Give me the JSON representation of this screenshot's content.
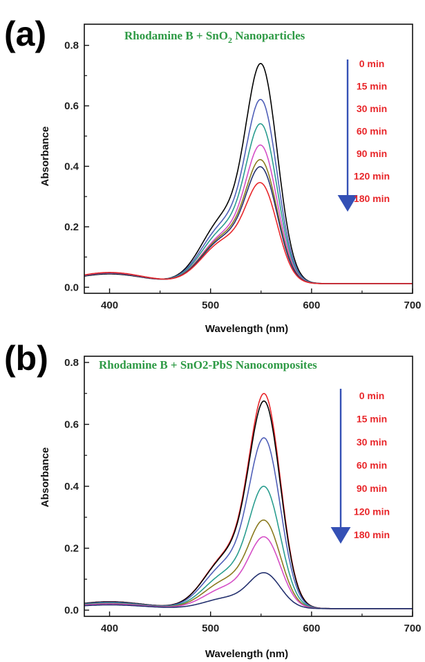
{
  "chart_data": [
    {
      "type": "line",
      "panel_label": "(a)",
      "title_main": "Rhodamine B + SnO",
      "title_sub": "2",
      "title_rest": " Nanoparticles",
      "xlabel": "Wavelength (nm)",
      "ylabel": "Absorbance",
      "xlim": [
        375,
        700
      ],
      "ylim": [
        -0.02,
        0.87
      ],
      "xticks": [
        400,
        500,
        600,
        700
      ],
      "yticks": [
        0.0,
        0.2,
        0.4,
        0.6,
        0.8
      ],
      "ytick_labels": [
        "0.0",
        "0.2",
        "0.4",
        "0.6",
        "0.8"
      ],
      "legend_placement": "top-right",
      "legend_arrow": true,
      "series": [
        {
          "name": "0 min",
          "color": "#000000",
          "peak": 0.785,
          "shoulder": 0.38,
          "base": 0.012,
          "bump": 0.032
        },
        {
          "name": "15 min",
          "color": "#4f5fb8",
          "peak": 0.66,
          "shoulder": 0.34,
          "base": 0.012,
          "bump": 0.034
        },
        {
          "name": "30 min",
          "color": "#2a9d8f",
          "peak": 0.575,
          "shoulder": 0.31,
          "base": 0.012,
          "bump": 0.035
        },
        {
          "name": "60 min",
          "color": "#d54ec6",
          "peak": 0.5,
          "shoulder": 0.28,
          "base": 0.012,
          "bump": 0.035
        },
        {
          "name": "90 min",
          "color": "#8a7a1e",
          "peak": 0.45,
          "shoulder": 0.27,
          "base": 0.012,
          "bump": 0.036
        },
        {
          "name": "120 min",
          "color": "#23306e",
          "peak": 0.425,
          "shoulder": 0.26,
          "base": 0.012,
          "bump": 0.036
        },
        {
          "name": "180 min",
          "color": "#e8262a",
          "peak": 0.37,
          "shoulder": 0.245,
          "base": 0.012,
          "bump": 0.037
        }
      ]
    },
    {
      "type": "line",
      "panel_label": "(b)",
      "title_main": "Rhodamine B + SnO",
      "title_sub": "2",
      "title_rest": "-PbS Nanocomposites",
      "xlabel": "Wavelength (nm)",
      "ylabel": "Absorbance",
      "xlim": [
        375,
        700
      ],
      "ylim": [
        -0.02,
        0.82
      ],
      "xticks": [
        400,
        500,
        600,
        700
      ],
      "yticks": [
        0.0,
        0.2,
        0.4,
        0.6,
        0.8
      ],
      "ytick_labels": [
        "0.0",
        "0.2",
        "0.4",
        "0.6",
        "0.8"
      ],
      "legend_placement": "top-right",
      "legend_arrow": true,
      "series": [
        {
          "name": "0 min",
          "color": "#e8262a",
          "peak": 0.74,
          "shoulder": 0.3,
          "base": 0.005,
          "bump": 0.022
        },
        {
          "name": "15 min",
          "color": "#000000",
          "peak": 0.715,
          "shoulder": 0.295,
          "base": 0.005,
          "bump": 0.022
        },
        {
          "name": "30 min",
          "color": "#4f5fb8",
          "peak": 0.59,
          "shoulder": 0.255,
          "base": 0.005,
          "bump": 0.02
        },
        {
          "name": "60 min",
          "color": "#2a9d8f",
          "peak": 0.425,
          "shoulder": 0.2,
          "base": 0.005,
          "bump": 0.018
        },
        {
          "name": "90 min",
          "color": "#8a7a1e",
          "peak": 0.31,
          "shoulder": 0.16,
          "base": 0.005,
          "bump": 0.016
        },
        {
          "name": "120 min",
          "color": "#d54ec6",
          "peak": 0.25,
          "shoulder": 0.12,
          "base": 0.005,
          "bump": 0.015
        },
        {
          "name": "180 min",
          "color": "#23306e",
          "peak": 0.125,
          "shoulder": 0.06,
          "base": 0.005,
          "bump": 0.012
        }
      ]
    }
  ]
}
